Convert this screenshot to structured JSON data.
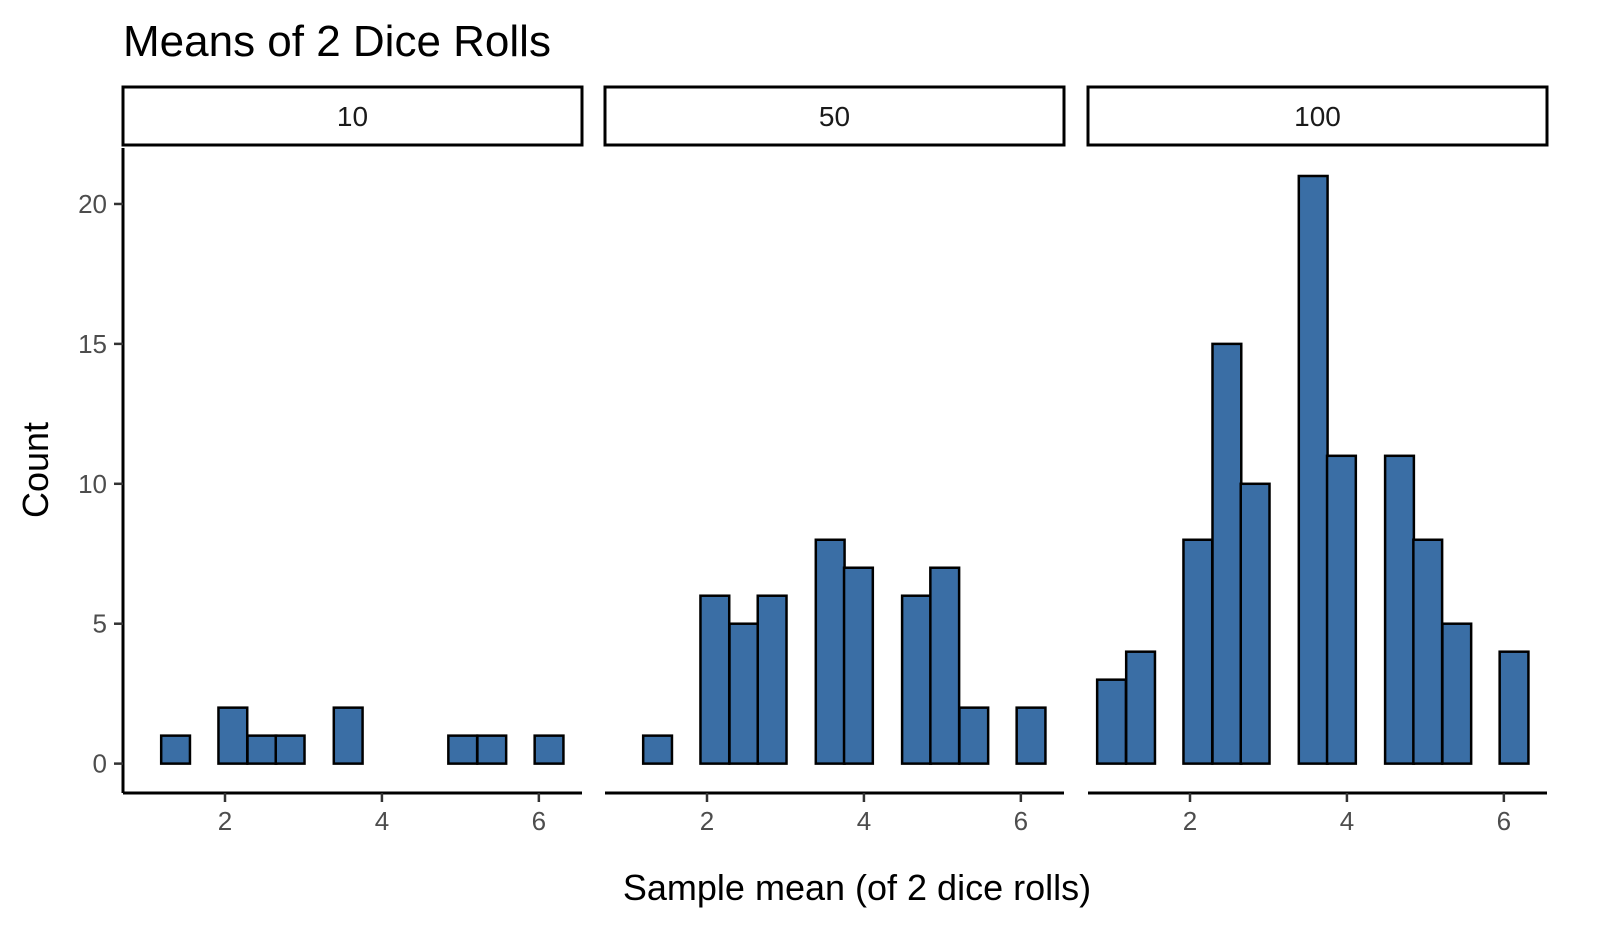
{
  "chart_data": {
    "type": "bar",
    "title": "Means of 2 Dice Rolls",
    "xlabel": "Sample mean (of 2 dice rolls)",
    "ylabel": "Count",
    "xlim": [
      0.7,
      6.55
    ],
    "ylim": [
      -1.05,
      22
    ],
    "x_ticks": [
      2,
      4,
      6
    ],
    "y_ticks": [
      0,
      5,
      10,
      15,
      20
    ],
    "bin_width": 0.3667,
    "bar_color": "#3a6ea5",
    "bar_border": "#000000",
    "grid": false,
    "legend": "none",
    "facets": [
      {
        "label": "10",
        "bins": [
          {
            "x": 1.0,
            "count": 0
          },
          {
            "x": 1.37,
            "count": 1
          },
          {
            "x": 1.73,
            "count": 0
          },
          {
            "x": 2.1,
            "count": 2
          },
          {
            "x": 2.47,
            "count": 1
          },
          {
            "x": 2.83,
            "count": 1
          },
          {
            "x": 3.2,
            "count": 0
          },
          {
            "x": 3.57,
            "count": 2
          },
          {
            "x": 3.93,
            "count": 0
          },
          {
            "x": 4.3,
            "count": 0
          },
          {
            "x": 4.67,
            "count": 0
          },
          {
            "x": 5.03,
            "count": 1
          },
          {
            "x": 5.4,
            "count": 1
          },
          {
            "x": 5.77,
            "count": 0
          },
          {
            "x": 6.13,
            "count": 1
          }
        ]
      },
      {
        "label": "50",
        "bins": [
          {
            "x": 1.0,
            "count": 0
          },
          {
            "x": 1.37,
            "count": 1
          },
          {
            "x": 1.73,
            "count": 0
          },
          {
            "x": 2.1,
            "count": 6
          },
          {
            "x": 2.47,
            "count": 5
          },
          {
            "x": 2.83,
            "count": 6
          },
          {
            "x": 3.2,
            "count": 0
          },
          {
            "x": 3.57,
            "count": 8
          },
          {
            "x": 3.93,
            "count": 7
          },
          {
            "x": 4.3,
            "count": 0
          },
          {
            "x": 4.67,
            "count": 6
          },
          {
            "x": 5.03,
            "count": 7
          },
          {
            "x": 5.4,
            "count": 2
          },
          {
            "x": 5.77,
            "count": 0
          },
          {
            "x": 6.13,
            "count": 2
          }
        ]
      },
      {
        "label": "100",
        "bins": [
          {
            "x": 1.0,
            "count": 3
          },
          {
            "x": 1.37,
            "count": 4
          },
          {
            "x": 1.73,
            "count": 0
          },
          {
            "x": 2.1,
            "count": 8
          },
          {
            "x": 2.47,
            "count": 15
          },
          {
            "x": 2.83,
            "count": 10
          },
          {
            "x": 3.2,
            "count": 0
          },
          {
            "x": 3.57,
            "count": 21
          },
          {
            "x": 3.93,
            "count": 11
          },
          {
            "x": 4.3,
            "count": 0
          },
          {
            "x": 4.67,
            "count": 11
          },
          {
            "x": 5.03,
            "count": 8
          },
          {
            "x": 5.4,
            "count": 5
          },
          {
            "x": 5.77,
            "count": 0
          },
          {
            "x": 6.13,
            "count": 4
          }
        ]
      }
    ]
  }
}
